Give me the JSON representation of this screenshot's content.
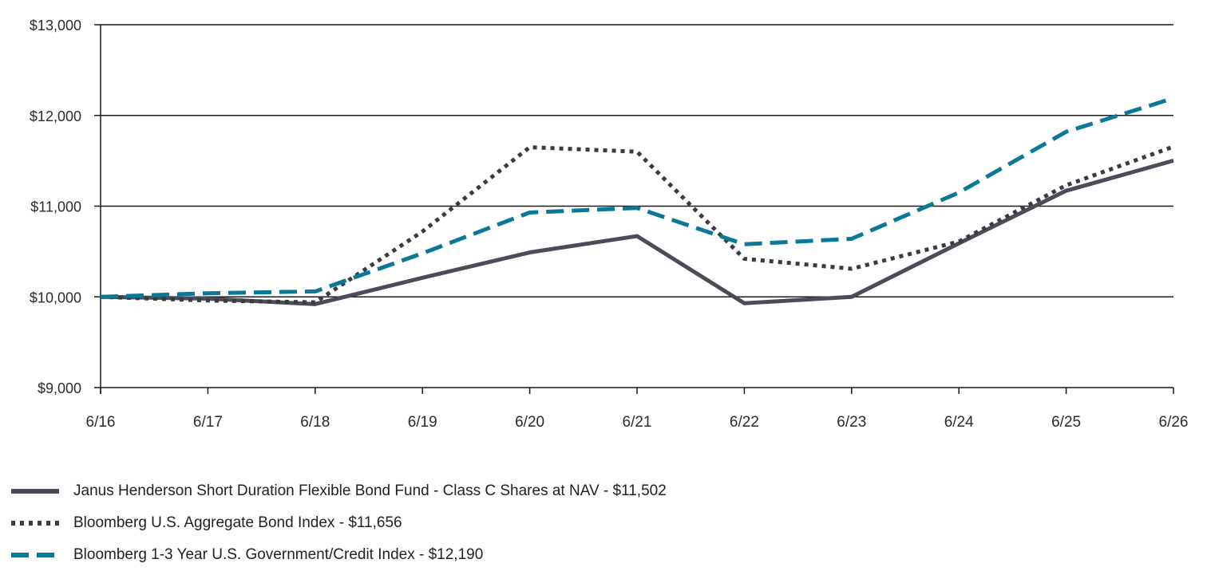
{
  "chart_data": {
    "type": "line",
    "x": [
      "6/16",
      "6/17",
      "6/18",
      "6/19",
      "6/20",
      "6/21",
      "6/22",
      "6/23",
      "6/24",
      "6/25",
      "6/26"
    ],
    "ylim": [
      9000,
      13000
    ],
    "yticks": [
      9000,
      10000,
      11000,
      12000,
      13000
    ],
    "ytick_labels": [
      "$9,000",
      "$10,000",
      "$11,000",
      "$12,000",
      "$13,000"
    ],
    "grid": true,
    "legend_position": "bottom-left",
    "series": [
      {
        "name": "Janus Henderson Short Duration Flexible Bond Fund - Class C Shares at NAV - $11,502",
        "style": "solid",
        "color": "#4a4d57",
        "values": [
          10000,
          9980,
          9920,
          10210,
          10490,
          10670,
          9930,
          10000,
          10590,
          11170,
          11502
        ]
      },
      {
        "name": "Bloomberg U.S. Aggregate Bond Index - $11,656",
        "style": "dotted",
        "color": "#3a3a40",
        "values": [
          10000,
          9960,
          9940,
          10720,
          11650,
          11600,
          10420,
          10310,
          10610,
          11230,
          11656
        ]
      },
      {
        "name": "Bloomberg 1-3 Year U.S. Government/Credit Index - $12,190",
        "style": "dashed",
        "color": "#0a7897",
        "values": [
          10000,
          10040,
          10060,
          10480,
          10930,
          10980,
          10580,
          10640,
          11150,
          11820,
          12190
        ]
      }
    ]
  }
}
